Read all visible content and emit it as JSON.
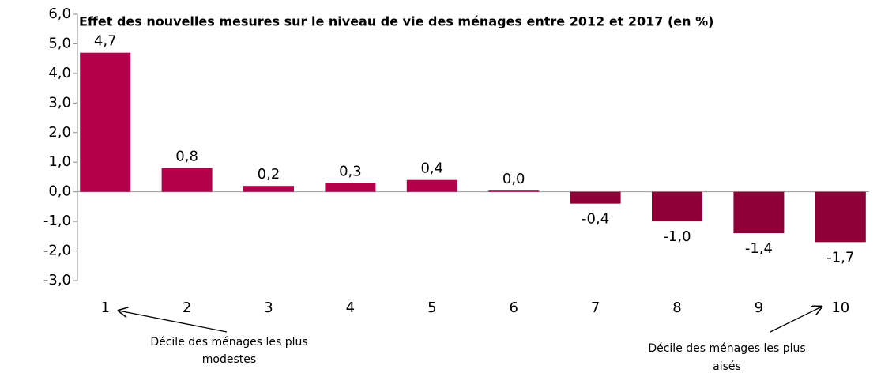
{
  "chart_data": {
    "type": "bar",
    "title": "Effet des nouvelles mesures sur le niveau de vie des ménages entre 2012 et 2017 (en %)",
    "categories": [
      "1",
      "2",
      "3",
      "4",
      "5",
      "6",
      "7",
      "8",
      "9",
      "10"
    ],
    "values": [
      4.7,
      0.8,
      0.2,
      0.3,
      0.4,
      0.04,
      -0.4,
      -1.0,
      -1.4,
      -1.7
    ],
    "value_labels": [
      "4,7",
      "0,8",
      "0,2",
      "0,3",
      "0,4",
      "0,0",
      "-0,4",
      "-1,0",
      "-1,4",
      "-1,7"
    ],
    "colors": [
      "#b4004a",
      "#b4004a",
      "#b4004a",
      "#b4004a",
      "#b4004a",
      "#b4004a",
      "#8e0036",
      "#8e0036",
      "#8e0036",
      "#8e0036"
    ],
    "ylim": [
      -3,
      6
    ],
    "yticks": [
      {
        "value": -3,
        "label": "-3,0"
      },
      {
        "value": -2,
        "label": "-2,0"
      },
      {
        "value": -1,
        "label": "-1,0"
      },
      {
        "value": 0,
        "label": "0,0"
      },
      {
        "value": 1,
        "label": "1,0"
      },
      {
        "value": 2,
        "label": "2,0"
      },
      {
        "value": 3,
        "label": "3,0"
      },
      {
        "value": 4,
        "label": "4,0"
      },
      {
        "value": 5,
        "label": "5,0"
      },
      {
        "value": 6,
        "label": "6,0"
      }
    ],
    "annotations": [
      [
        "Décile des ménages les plus",
        "modestes"
      ],
      [
        "Décile des ménages les plus",
        "aisés"
      ]
    ]
  }
}
